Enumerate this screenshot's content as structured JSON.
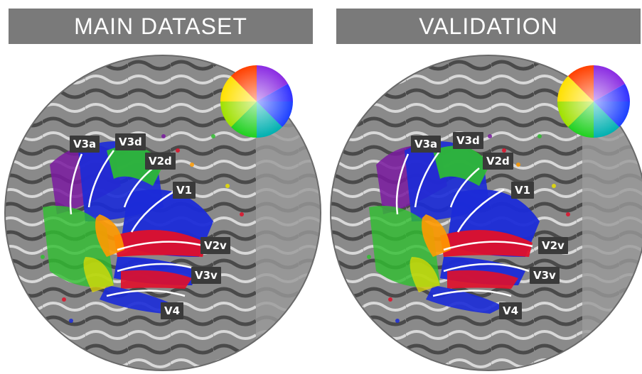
{
  "panels": [
    {
      "title": "MAIN DATASET"
    },
    {
      "title": "VALIDATION"
    }
  ],
  "labels": {
    "v3a": "V3a",
    "v3d": "V3d",
    "v2d": "V2d",
    "v1": "V1",
    "v2v": "V2v",
    "v3v": "V3v",
    "v4": "V4"
  },
  "colors": {
    "banner": "#7a7a7a",
    "label_box": "#3a3a3a",
    "cortex_gray": "#7f7f7f",
    "blue": "#1b2bd8",
    "green": "#2fbf2f",
    "red": "#e0102a",
    "purple": "#7a1aa0",
    "orange": "#ff9a00",
    "yellow": "#e8e000"
  }
}
